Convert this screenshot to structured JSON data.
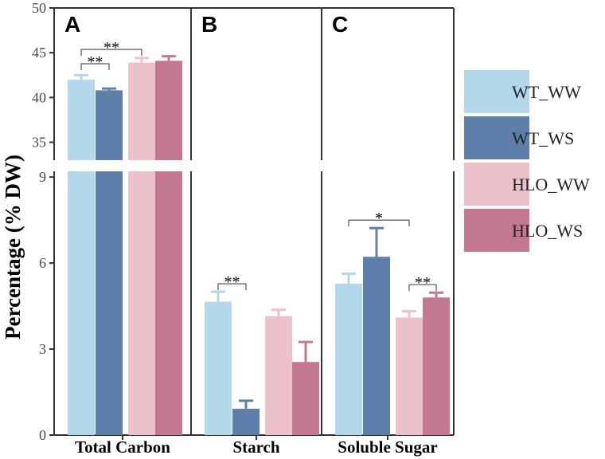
{
  "chart_data": {
    "type": "bar",
    "ylabel": "Percentage (% DW)",
    "axis_break": true,
    "y_upper_segment": {
      "range": [
        33,
        50
      ],
      "ticks": [
        35,
        40,
        45,
        50
      ]
    },
    "y_lower_segment": {
      "range": [
        0,
        9.2
      ],
      "ticks": [
        0,
        3,
        6,
        9
      ]
    },
    "series_names": [
      "WT_WW",
      "WT_WS",
      "HLO_WW",
      "HLO_WS"
    ],
    "colors": {
      "WT_WW": "#b3d7eb",
      "WT_WS": "#5f7fab",
      "HLO_WW": "#ecc1c9",
      "HLO_WS": "#c3788f"
    },
    "panels": [
      {
        "letter": "A",
        "category": "Total Carbon",
        "values": [
          42.0,
          40.8,
          43.9,
          44.1
        ],
        "errors": [
          0.5,
          0.2,
          0.5,
          0.5
        ],
        "significance": [
          {
            "label": "**",
            "from": 0,
            "to": 1
          },
          {
            "label": "**",
            "from": 0,
            "to": 2
          }
        ]
      },
      {
        "letter": "B",
        "category": "Starch",
        "values": [
          4.65,
          0.92,
          4.15,
          2.55
        ],
        "errors": [
          0.35,
          0.28,
          0.22,
          0.7
        ],
        "significance": [
          {
            "label": "**",
            "from": 0,
            "to": 1
          }
        ]
      },
      {
        "letter": "C",
        "category": "Soluble Sugar",
        "values": [
          5.28,
          6.22,
          4.1,
          4.8
        ],
        "errors": [
          0.35,
          1.0,
          0.22,
          0.17
        ],
        "significance": [
          {
            "label": "*",
            "from": 0,
            "to": 2
          },
          {
            "label": "**",
            "from": 2,
            "to": 3
          }
        ]
      }
    ]
  }
}
